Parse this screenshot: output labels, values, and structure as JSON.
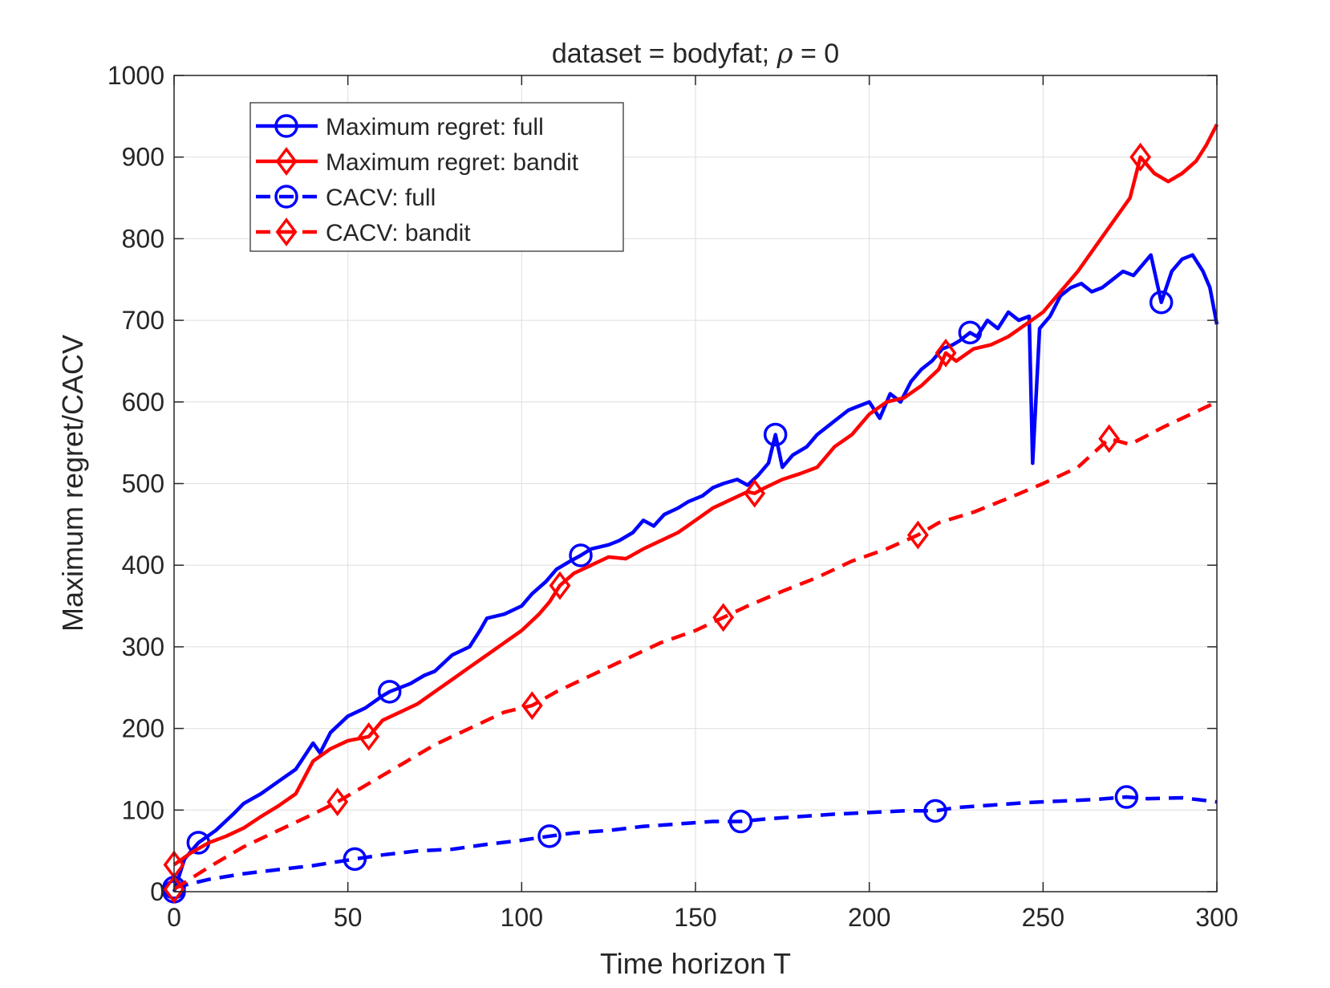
{
  "chart_data": {
    "type": "line",
    "title_prefix": "dataset = bodyfat; ",
    "title_symbol": "ρ",
    "title_suffix": " = 0",
    "xlabel": "Time horizon T",
    "ylabel": "Maximum regret/CACV",
    "xlim": [
      0,
      300
    ],
    "ylim": [
      0,
      1000
    ],
    "xticks": [
      "0",
      "50",
      "100",
      "150",
      "200",
      "250",
      "300"
    ],
    "yticks": [
      "0",
      "100",
      "200",
      "300",
      "400",
      "500",
      "600",
      "700",
      "800",
      "900",
      "1000"
    ],
    "grid": true,
    "legend_position": "top-left",
    "series": [
      {
        "name": "Maximum regret: full",
        "color": "#0000ff",
        "line_style": "solid",
        "marker": "circle",
        "markers_at": [
          0,
          7,
          62,
          117,
          173,
          229,
          284
        ],
        "points": [
          [
            0,
            0
          ],
          [
            3,
            40
          ],
          [
            7,
            60
          ],
          [
            12,
            75
          ],
          [
            17,
            95
          ],
          [
            20,
            108
          ],
          [
            25,
            120
          ],
          [
            30,
            135
          ],
          [
            35,
            150
          ],
          [
            40,
            182
          ],
          [
            42,
            170
          ],
          [
            45,
            195
          ],
          [
            50,
            215
          ],
          [
            55,
            225
          ],
          [
            60,
            240
          ],
          [
            62,
            245
          ],
          [
            65,
            250
          ],
          [
            68,
            255
          ],
          [
            72,
            265
          ],
          [
            75,
            270
          ],
          [
            80,
            290
          ],
          [
            85,
            300
          ],
          [
            88,
            320
          ],
          [
            90,
            335
          ],
          [
            95,
            340
          ],
          [
            100,
            350
          ],
          [
            103,
            365
          ],
          [
            107,
            380
          ],
          [
            110,
            395
          ],
          [
            114,
            405
          ],
          [
            117,
            412
          ],
          [
            120,
            420
          ],
          [
            125,
            425
          ],
          [
            128,
            430
          ],
          [
            132,
            440
          ],
          [
            135,
            455
          ],
          [
            138,
            448
          ],
          [
            141,
            462
          ],
          [
            145,
            470
          ],
          [
            148,
            478
          ],
          [
            152,
            485
          ],
          [
            155,
            495
          ],
          [
            158,
            500
          ],
          [
            162,
            505
          ],
          [
            165,
            498
          ],
          [
            168,
            510
          ],
          [
            171,
            525
          ],
          [
            173,
            560
          ],
          [
            175,
            520
          ],
          [
            178,
            535
          ],
          [
            182,
            545
          ],
          [
            185,
            560
          ],
          [
            188,
            570
          ],
          [
            191,
            580
          ],
          [
            194,
            590
          ],
          [
            197,
            595
          ],
          [
            200,
            600
          ],
          [
            203,
            580
          ],
          [
            206,
            610
          ],
          [
            209,
            600
          ],
          [
            212,
            625
          ],
          [
            215,
            640
          ],
          [
            218,
            650
          ],
          [
            221,
            665
          ],
          [
            224,
            670
          ],
          [
            226,
            675
          ],
          [
            229,
            685
          ],
          [
            231,
            680
          ],
          [
            234,
            700
          ],
          [
            237,
            690
          ],
          [
            240,
            710
          ],
          [
            243,
            700
          ],
          [
            246,
            705
          ],
          [
            247,
            525
          ],
          [
            249,
            690
          ],
          [
            252,
            705
          ],
          [
            255,
            730
          ],
          [
            258,
            740
          ],
          [
            261,
            745
          ],
          [
            264,
            735
          ],
          [
            267,
            740
          ],
          [
            270,
            750
          ],
          [
            273,
            760
          ],
          [
            276,
            755
          ],
          [
            279,
            770
          ],
          [
            281,
            780
          ],
          [
            284,
            722
          ],
          [
            287,
            760
          ],
          [
            290,
            775
          ],
          [
            293,
            780
          ],
          [
            296,
            760
          ],
          [
            298,
            740
          ],
          [
            300,
            695
          ]
        ]
      },
      {
        "name": "Maximum regret: bandit",
        "color": "#ff0000",
        "line_style": "solid",
        "marker": "diamond",
        "markers_at": [
          0,
          56,
          111,
          167,
          222,
          278
        ],
        "points": [
          [
            0,
            33
          ],
          [
            5,
            48
          ],
          [
            10,
            60
          ],
          [
            15,
            68
          ],
          [
            20,
            78
          ],
          [
            25,
            92
          ],
          [
            30,
            105
          ],
          [
            35,
            120
          ],
          [
            40,
            160
          ],
          [
            45,
            175
          ],
          [
            50,
            185
          ],
          [
            56,
            190
          ],
          [
            60,
            210
          ],
          [
            65,
            220
          ],
          [
            70,
            230
          ],
          [
            75,
            245
          ],
          [
            80,
            260
          ],
          [
            85,
            275
          ],
          [
            90,
            290
          ],
          [
            95,
            305
          ],
          [
            100,
            320
          ],
          [
            105,
            340
          ],
          [
            108,
            355
          ],
          [
            111,
            375
          ],
          [
            115,
            390
          ],
          [
            120,
            400
          ],
          [
            125,
            410
          ],
          [
            130,
            408
          ],
          [
            135,
            420
          ],
          [
            140,
            430
          ],
          [
            145,
            440
          ],
          [
            150,
            455
          ],
          [
            155,
            470
          ],
          [
            160,
            480
          ],
          [
            165,
            490
          ],
          [
            167,
            488
          ],
          [
            170,
            495
          ],
          [
            175,
            505
          ],
          [
            180,
            512
          ],
          [
            185,
            520
          ],
          [
            190,
            545
          ],
          [
            195,
            560
          ],
          [
            200,
            585
          ],
          [
            205,
            600
          ],
          [
            210,
            605
          ],
          [
            215,
            620
          ],
          [
            220,
            640
          ],
          [
            222,
            660
          ],
          [
            225,
            650
          ],
          [
            230,
            665
          ],
          [
            235,
            670
          ],
          [
            240,
            680
          ],
          [
            245,
            695
          ],
          [
            250,
            710
          ],
          [
            255,
            735
          ],
          [
            260,
            760
          ],
          [
            265,
            790
          ],
          [
            270,
            820
          ],
          [
            275,
            850
          ],
          [
            278,
            900
          ],
          [
            282,
            880
          ],
          [
            286,
            870
          ],
          [
            290,
            880
          ],
          [
            294,
            895
          ],
          [
            297,
            915
          ],
          [
            300,
            940
          ]
        ]
      },
      {
        "name": "CACV: full",
        "color": "#0000ff",
        "line_style": "dashed",
        "marker": "circle",
        "markers_at": [
          0,
          52,
          108,
          163,
          219,
          274
        ],
        "points": [
          [
            0,
            5
          ],
          [
            10,
            15
          ],
          [
            20,
            22
          ],
          [
            30,
            27
          ],
          [
            40,
            32
          ],
          [
            52,
            40
          ],
          [
            60,
            45
          ],
          [
            70,
            50
          ],
          [
            80,
            52
          ],
          [
            90,
            58
          ],
          [
            100,
            63
          ],
          [
            108,
            68
          ],
          [
            115,
            72
          ],
          [
            125,
            75
          ],
          [
            135,
            80
          ],
          [
            145,
            83
          ],
          [
            155,
            86
          ],
          [
            163,
            86
          ],
          [
            170,
            89
          ],
          [
            180,
            92
          ],
          [
            190,
            95
          ],
          [
            200,
            97
          ],
          [
            210,
            99
          ],
          [
            219,
            99
          ],
          [
            225,
            103
          ],
          [
            235,
            106
          ],
          [
            245,
            109
          ],
          [
            255,
            111
          ],
          [
            265,
            113
          ],
          [
            274,
            116
          ],
          [
            280,
            114
          ],
          [
            290,
            115
          ],
          [
            300,
            110
          ]
        ]
      },
      {
        "name": "CACV: bandit",
        "color": "#ff0000",
        "line_style": "dashed",
        "marker": "diamond",
        "markers_at": [
          0,
          47,
          103,
          158,
          214,
          269
        ],
        "points": [
          [
            0,
            3
          ],
          [
            10,
            30
          ],
          [
            20,
            55
          ],
          [
            30,
            75
          ],
          [
            40,
            95
          ],
          [
            47,
            110
          ],
          [
            55,
            130
          ],
          [
            65,
            155
          ],
          [
            75,
            180
          ],
          [
            85,
            200
          ],
          [
            95,
            220
          ],
          [
            103,
            228
          ],
          [
            110,
            245
          ],
          [
            120,
            265
          ],
          [
            130,
            285
          ],
          [
            140,
            305
          ],
          [
            150,
            320
          ],
          [
            158,
            336
          ],
          [
            165,
            350
          ],
          [
            175,
            368
          ],
          [
            185,
            385
          ],
          [
            195,
            405
          ],
          [
            205,
            420
          ],
          [
            214,
            437
          ],
          [
            220,
            452
          ],
          [
            230,
            465
          ],
          [
            240,
            482
          ],
          [
            250,
            500
          ],
          [
            260,
            520
          ],
          [
            269,
            555
          ],
          [
            275,
            548
          ],
          [
            285,
            570
          ],
          [
            295,
            590
          ],
          [
            300,
            600
          ]
        ]
      }
    ]
  }
}
